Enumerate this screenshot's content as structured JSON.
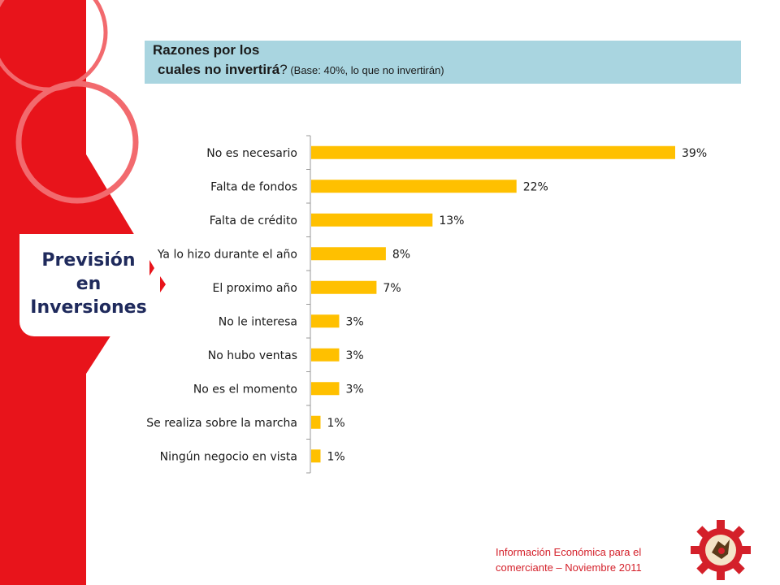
{
  "section": {
    "title_line1": "Previsión",
    "title_line2": "en",
    "title_line3": "Inversiones"
  },
  "header": {
    "title_line1": "Razones por los",
    "title_line2": "cuales no invertirá",
    "title_q": "?",
    "title_base": " (Base: 40%, lo que no invertirán)"
  },
  "footer": {
    "line1": "Información Económica para el",
    "line2": "comerciante –  Noviembre  2011"
  },
  "colors": {
    "bar": "#ffc000",
    "accent_red": "#e8141b",
    "title_bg": "#a9d5e0",
    "section_text": "#1f2a5c"
  },
  "chart_data": {
    "type": "bar",
    "orientation": "horizontal",
    "categories": [
      "No es necesario",
      "Falta de fondos",
      "Falta de crédito",
      "Ya lo hizo durante el año",
      "El proximo año",
      "No le interesa",
      "No hubo ventas",
      "No es el momento",
      "Se realiza sobre la marcha",
      "Ningún negocio en vista"
    ],
    "values": [
      39,
      22,
      13,
      8,
      7,
      3,
      3,
      3,
      1,
      1
    ],
    "labels": [
      "39%",
      "22%",
      "13%",
      "8%",
      "7%",
      "3%",
      "3%",
      "3%",
      "1%",
      "1%"
    ],
    "xlim": [
      0,
      40
    ],
    "grid": false,
    "legend": false,
    "value_labels": "outside-end"
  },
  "logo": {
    "icon": "gear-logo-icon"
  }
}
